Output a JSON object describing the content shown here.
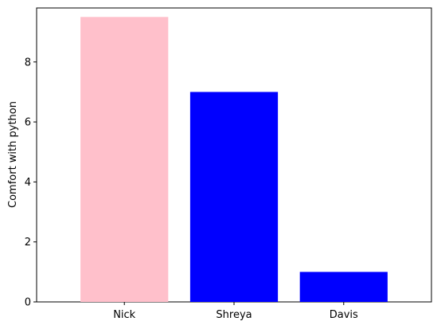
{
  "chart_data": {
    "type": "bar",
    "categories": [
      "Nick",
      "Shreya",
      "Davis"
    ],
    "values": [
      9.5,
      7,
      1
    ],
    "bar_colors": [
      "#ffc0cb",
      "#0000ff",
      "#0000ff"
    ],
    "ylabel": "Comfort with python",
    "ylim": [
      0,
      9.8
    ],
    "yticks": [
      0,
      2,
      4,
      6,
      8
    ],
    "ytick_labels": [
      "0",
      "2",
      "4",
      "6",
      "8"
    ],
    "grid": false,
    "legend": null
  }
}
